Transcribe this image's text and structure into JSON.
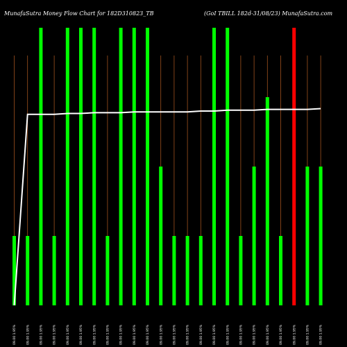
{
  "chart_data": {
    "type": "bar",
    "title_left": "MunafaSutra  Money Flow Chart for 182D310823_TB",
    "title_right": "(GoI  TBILL 182d-31/08/23) MunafaSutra.com",
    "xlabels": [
      "09.00 1.95%",
      "09.00 1.95%",
      "09.00 1.95%",
      "09.00 1.95%",
      "09.00 1.95%",
      "09.00 1.95%",
      "09.00 1.95%",
      "09.00 1.95%",
      "09.00 1.95%",
      "09.00 1.95%",
      "09.00 1.95%",
      "09.00 1.95%",
      "09.00 1.95%",
      "09.00 1.95%",
      "09.00 1.95%",
      "09.00 1.95%",
      "09.00 1.95%",
      "09.00 1.95%",
      "09.00 1.95%",
      "09.00 1.95%",
      "09.00 1.95%",
      "09.00 1.95%",
      "09.00 1.95%",
      "09.00 1.95%"
    ],
    "bar_values": [
      1,
      1,
      4,
      1,
      4,
      4,
      4,
      1,
      4,
      4,
      4,
      2,
      1,
      1,
      1,
      4,
      4,
      1,
      2,
      3,
      1,
      4,
      2,
      2
    ],
    "bar_colors": [
      "green",
      "green",
      "green",
      "green",
      "green",
      "green",
      "green",
      "green",
      "green",
      "green",
      "green",
      "green",
      "green",
      "green",
      "green",
      "green",
      "green",
      "green",
      "green",
      "green",
      "green",
      "red",
      "green",
      "green"
    ],
    "price_line": [
      0,
      234,
      234,
      234,
      235,
      235,
      236,
      236,
      236,
      237,
      237,
      237,
      237,
      237,
      238,
      238,
      239,
      239,
      239,
      240,
      240,
      240,
      240,
      241
    ],
    "ylim": [
      0,
      340
    ],
    "colors": {
      "green": "#00ff00",
      "red": "#ff0000",
      "guide": "#a0521e",
      "line": "#ffffff",
      "background": "#000000"
    }
  }
}
